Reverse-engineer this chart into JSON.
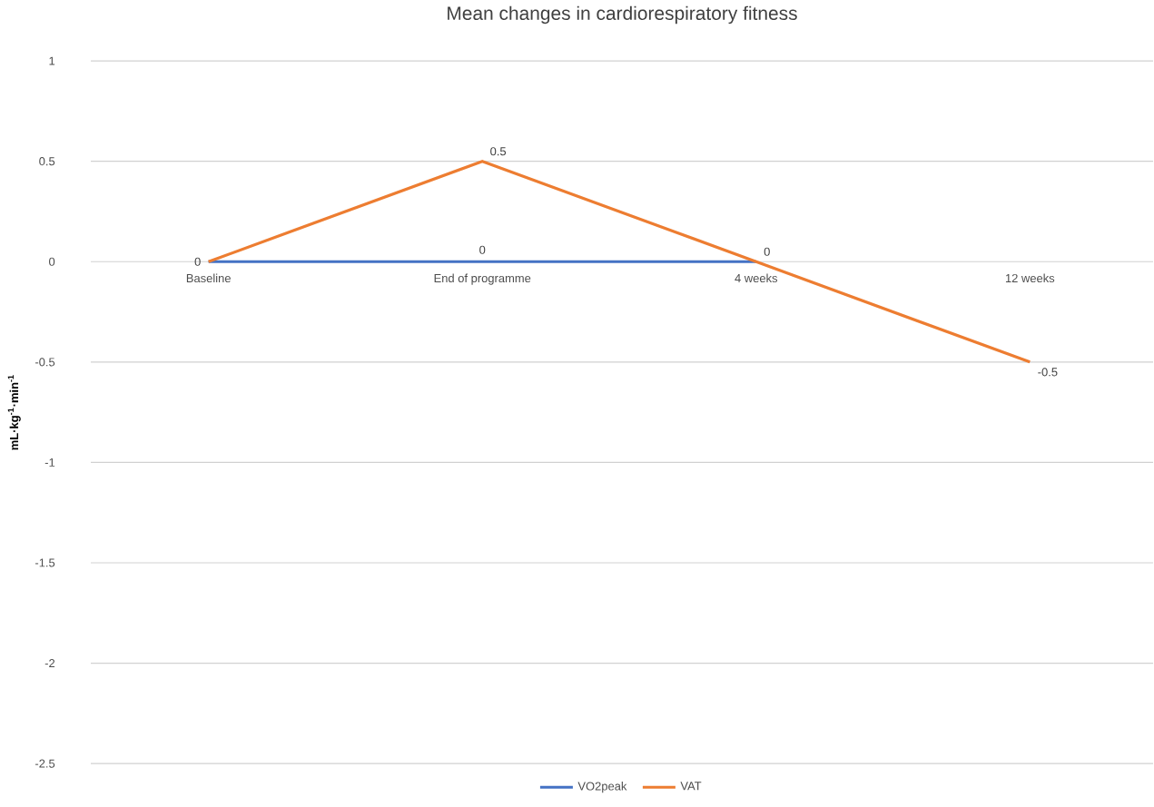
{
  "chart_data": {
    "type": "line",
    "title": "Mean changes in cardiorespiratory fitness",
    "ylabel": "mL·kg$^{-1}$·min$^{-1}$",
    "categories": [
      "Baseline",
      "End of programme",
      "4 weeks",
      "12 weeks"
    ],
    "series": [
      {
        "name": "VO2peak",
        "color": "#4472c4",
        "values": [
          0,
          0,
          0,
          null
        ],
        "value_labels": [
          "0",
          "0",
          null,
          null
        ]
      },
      {
        "name": "VAT",
        "color": "#ed7d31",
        "values": [
          0,
          0.5,
          0,
          -0.5
        ],
        "value_labels": [
          null,
          "0.5",
          "0",
          "-0.5"
        ]
      }
    ],
    "ylim": [
      -2.5,
      1
    ],
    "yticks": [
      -2.5,
      -2,
      -1.5,
      -1,
      -0.5,
      0,
      0.5,
      1
    ],
    "grid": "y",
    "legend": "bottom"
  }
}
